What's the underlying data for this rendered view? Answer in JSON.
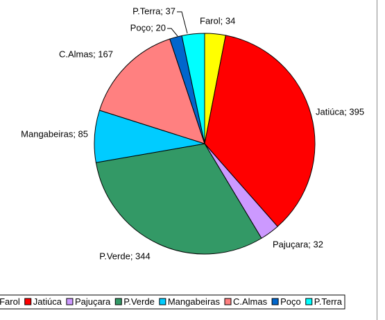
{
  "chart_data": {
    "type": "pie",
    "categories": [
      "Farol",
      "Jatiúca",
      "Pajuçara",
      "P.Verde",
      "Mangabeiras",
      "C.Almas",
      "Poço",
      "P.Terra"
    ],
    "values": [
      34,
      395,
      32,
      344,
      85,
      167,
      20,
      37
    ],
    "value_labels": [
      "Farol; 34",
      "Jatiúca; 395",
      "Pajuçara; 32",
      "P.Verde; 344",
      "Mangabeiras; 85",
      "C.Almas; 167",
      "Poço; 20",
      "P.Terra; 37"
    ],
    "colors": [
      "#ffff00",
      "#ff0000",
      "#cc99ff",
      "#339966",
      "#00ccff",
      "#ff8080",
      "#0066cc",
      "#00ffff"
    ],
    "legend": "bottom"
  }
}
